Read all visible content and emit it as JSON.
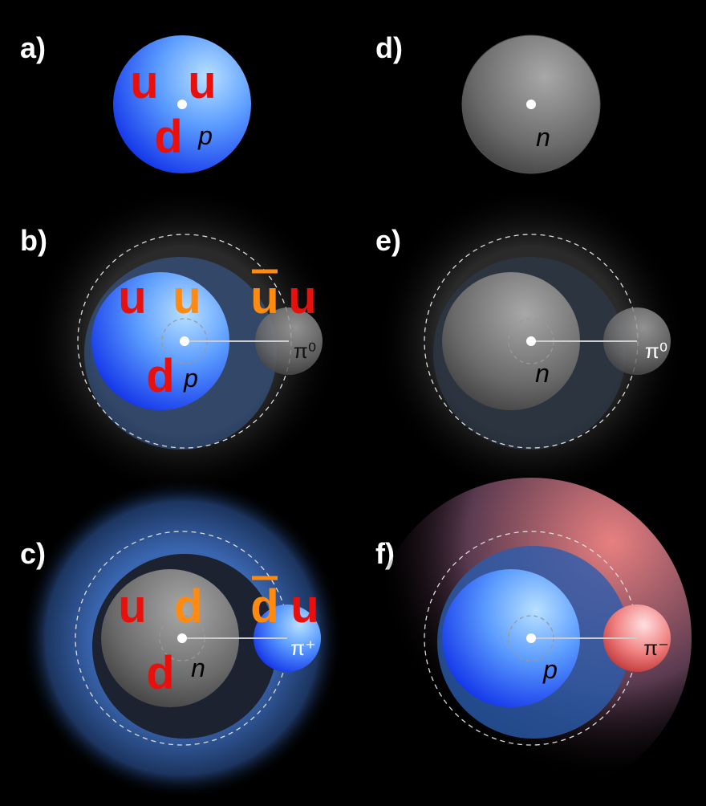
{
  "panels": [
    {
      "label": "a)",
      "nucleon": "p",
      "quarks": [
        "u",
        "u",
        "d"
      ]
    },
    {
      "label": "b)",
      "nucleon": "p",
      "quarks": [
        "u",
        "u",
        "d"
      ],
      "pion_quarks": [
        "u",
        "u"
      ],
      "pion": "π⁰"
    },
    {
      "label": "c)",
      "nucleon": "n",
      "quarks": [
        "u",
        "d",
        "d"
      ],
      "pion_quarks": [
        "d",
        "u"
      ],
      "pion": "π⁺"
    },
    {
      "label": "d)",
      "nucleon": "n"
    },
    {
      "label": "e)",
      "nucleon": "n",
      "pion": "π⁰"
    },
    {
      "label": "f)",
      "nucleon": "p",
      "pion": "π⁻"
    }
  ]
}
